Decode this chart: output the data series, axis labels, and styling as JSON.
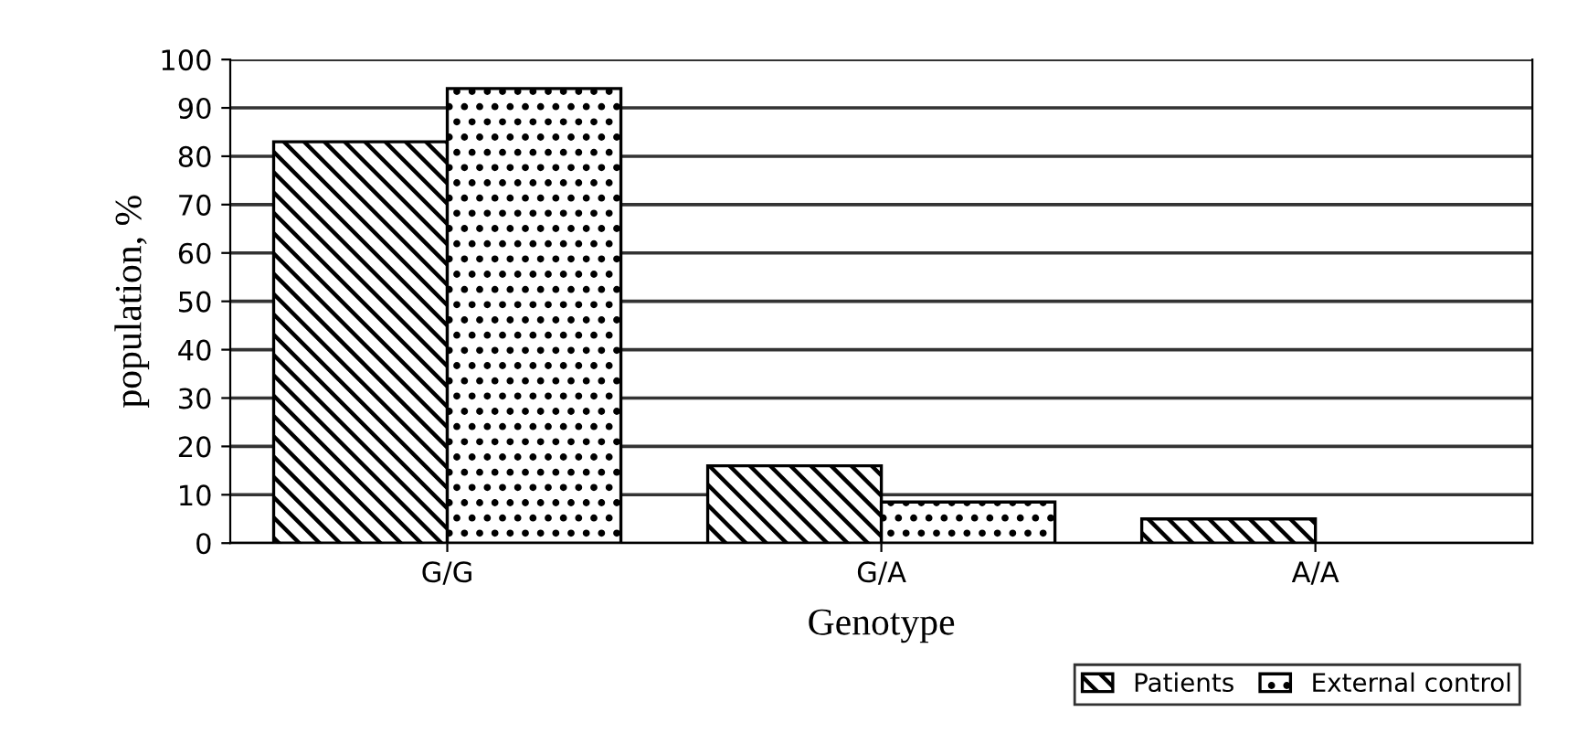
{
  "chart_data": {
    "type": "bar",
    "xlabel": "Genotype",
    "ylabel": "population, %",
    "categories": [
      "G/G",
      "G/A",
      "A/A"
    ],
    "series": [
      {
        "name": "Patients",
        "color": "#000000",
        "values": [
          83,
          16,
          5
        ]
      },
      {
        "name": "External control",
        "color": "#000000",
        "values": [
          94,
          8.5,
          null
        ]
      }
    ],
    "ylim": [
      0,
      100
    ],
    "yticks": [
      0,
      10,
      20,
      30,
      40,
      50,
      60,
      70,
      80,
      90,
      100
    ],
    "grid": "y",
    "legend": "bottom right"
  }
}
